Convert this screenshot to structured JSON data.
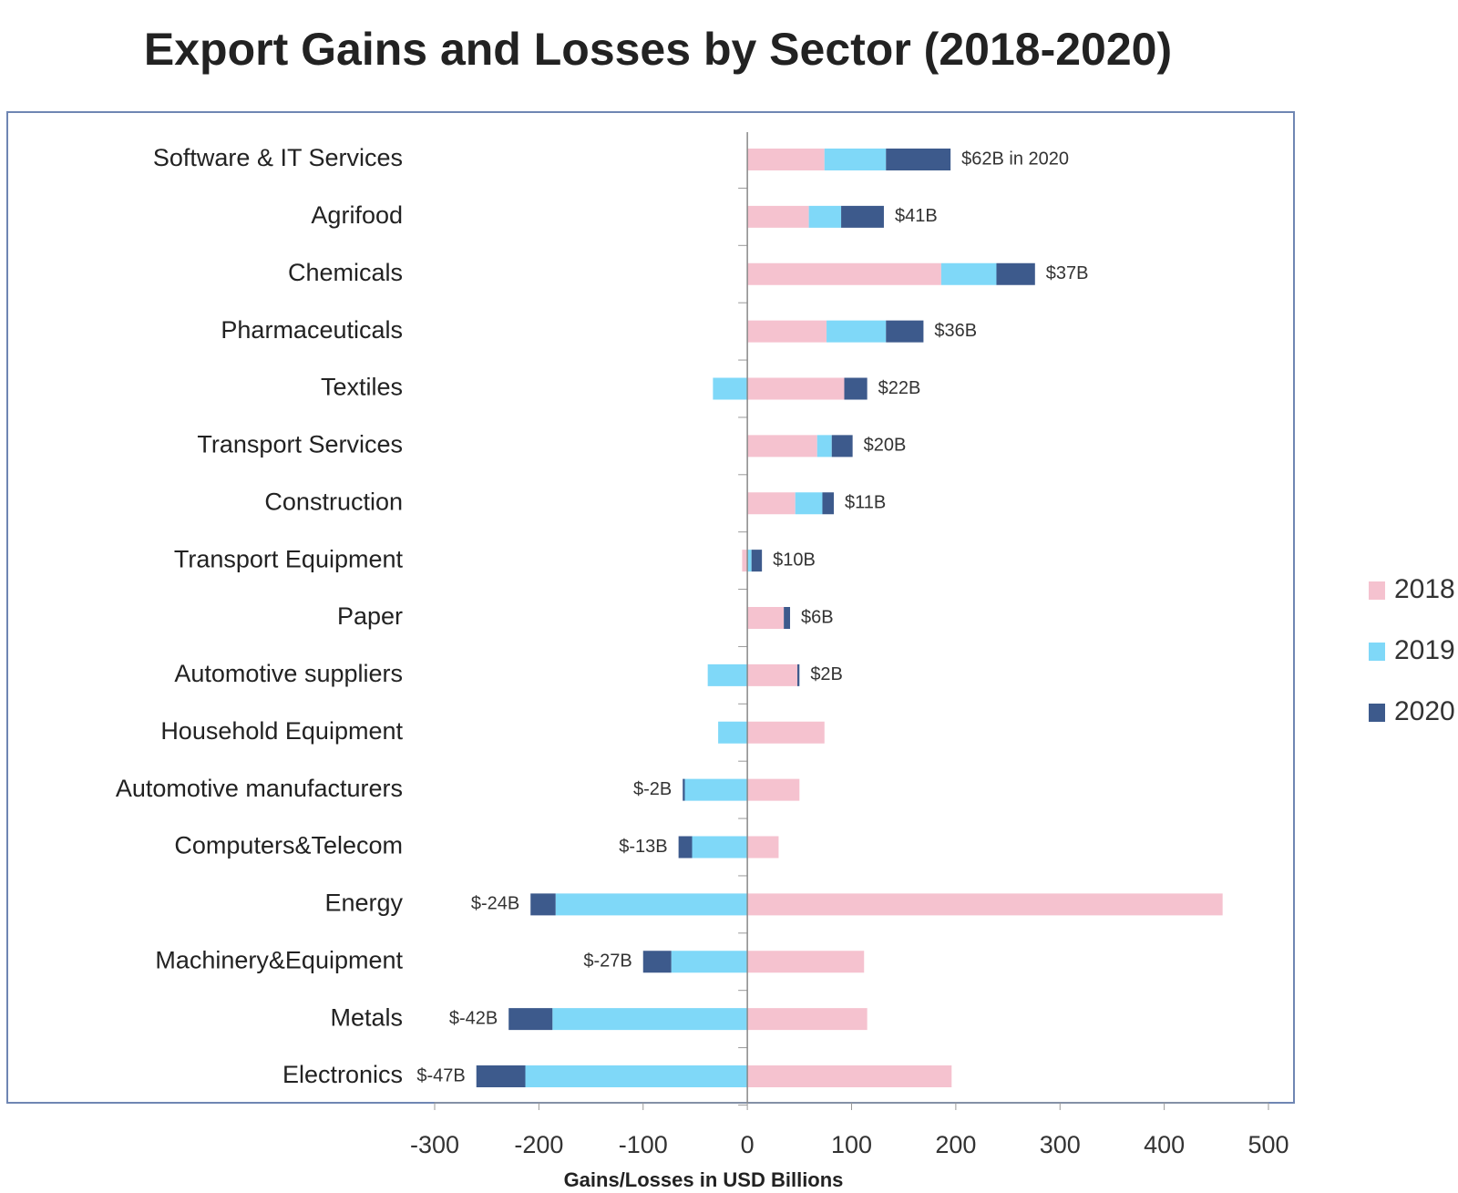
{
  "chart_data": {
    "type": "bar",
    "orientation": "horizontal",
    "stacked": true,
    "title": "Export Gains and Losses by Sector (2018-2020)",
    "xlabel": "Gains/Losses in USD Billions",
    "categories": [
      "Software & IT Services",
      "Agrifood",
      "Chemicals",
      "Pharmaceuticals",
      "Textiles",
      "Transport Services",
      "Construction",
      "Transport Equipment",
      "Paper",
      "Automotive suppliers",
      "Household Equipment",
      "Automotive manufacturers",
      "Computers&Telecom",
      "Energy",
      "Machinery&Equipment",
      "Metals",
      "Electronics"
    ],
    "series": [
      {
        "name": "2018",
        "color": "#f5c2cf",
        "values": [
          74,
          59,
          186,
          76,
          93,
          67,
          46,
          -5,
          35,
          48,
          74,
          50,
          30,
          456,
          112,
          115,
          196
        ]
      },
      {
        "name": "2019",
        "color": "#7fd8f8",
        "values": [
          59,
          31,
          53,
          57,
          -33,
          14,
          26,
          4,
          0,
          -38,
          -28,
          -60,
          -53,
          -184,
          -73,
          -187,
          -213
        ]
      },
      {
        "name": "2020",
        "color": "#3d5a8c",
        "values": [
          62,
          41,
          37,
          36,
          22,
          20,
          11,
          10,
          6,
          2,
          0,
          -2,
          -13,
          -24,
          -27,
          -42,
          -47
        ],
        "value_labels": [
          "$62B in 2020",
          "$41B",
          "$37B",
          "$36B",
          "$22B",
          "$20B",
          "$11B",
          "$10B",
          "$6B",
          "$2B",
          null,
          "$-2B",
          "$-13B",
          "$-24B",
          "$-27B",
          "$-42B",
          "$-47B"
        ]
      }
    ],
    "xlim": [
      -300,
      500
    ],
    "xticks": [
      -300,
      -200,
      -100,
      0,
      100,
      200,
      300,
      400,
      500
    ],
    "legend": "right"
  }
}
